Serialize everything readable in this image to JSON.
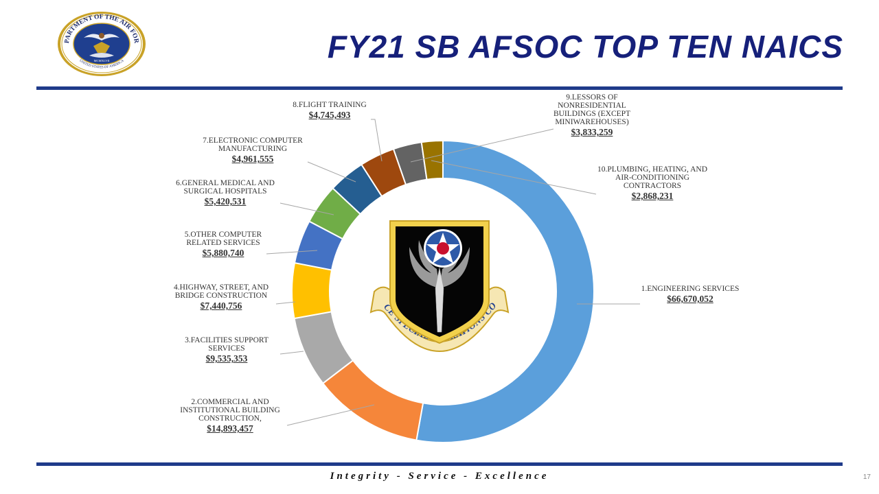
{
  "slide": {
    "title": "FY21 SB AFSOC TOP TEN NAICS",
    "footer": "Integrity - Service - Excellence",
    "page_number": "17"
  },
  "seal": {
    "ring_text": "DEPARTMENT OF THE AIR FORCE",
    "bottom_text": "UNITED STATES OF AMERICA",
    "year": "MCMXLVII"
  },
  "badge": {
    "banner_text": "AIR FORCE SPECIAL OPERATIONS COMMAND"
  },
  "chart_data": {
    "type": "pie",
    "style": "donut",
    "title": "",
    "slices": [
      {
        "name": "1.ENGINEERING SERVICES",
        "label": "$66,670,052",
        "value": 66670052,
        "color": "#5b9fdb"
      },
      {
        "name": "2.COMMERCIAL AND INSTITUTIONAL BUILDING CONSTRUCTION,",
        "label": "$14,893,457",
        "value": 14893457,
        "color": "#f5863a"
      },
      {
        "name": "3.FACILITIES SUPPORT SERVICES",
        "label": "$9,535,353",
        "value": 9535353,
        "color": "#a9a9a9"
      },
      {
        "name": "4.HIGHWAY, STREET, AND BRIDGE CONSTRUCTION",
        "label": "$7,440,756",
        "value": 7440756,
        "color": "#ffc000"
      },
      {
        "name": "5.OTHER COMPUTER RELATED SERVICES",
        "label": "$5,880,740",
        "value": 5880740,
        "color": "#4472c4"
      },
      {
        "name": "6.GENERAL MEDICAL AND SURGICAL HOSPITALS",
        "label": "$5,420,531",
        "value": 5420531,
        "color": "#70ad47"
      },
      {
        "name": "7.ELECTRONIC COMPUTER MANUFACTURING",
        "label": "$4,961,555",
        "value": 4961555,
        "color": "#255e91"
      },
      {
        "name": "8.FLIGHT TRAINING",
        "label": "$4,745,493",
        "value": 4745493,
        "color": "#9e480e"
      },
      {
        "name": "9.LESSORS OF NONRESIDENTIAL BUILDINGS (EXCEPT MINIWAREHOUSES)",
        "label": "$3,833,259",
        "value": 3833259,
        "color": "#636363"
      },
      {
        "name": "10.PLUMBING, HEATING, AND AIR-CONDITIONING CONTRACTORS",
        "label": "$2,868,231",
        "value": 2868231,
        "color": "#997300"
      }
    ],
    "legend": "none",
    "data_labels": "outside-with-leader-lines"
  }
}
